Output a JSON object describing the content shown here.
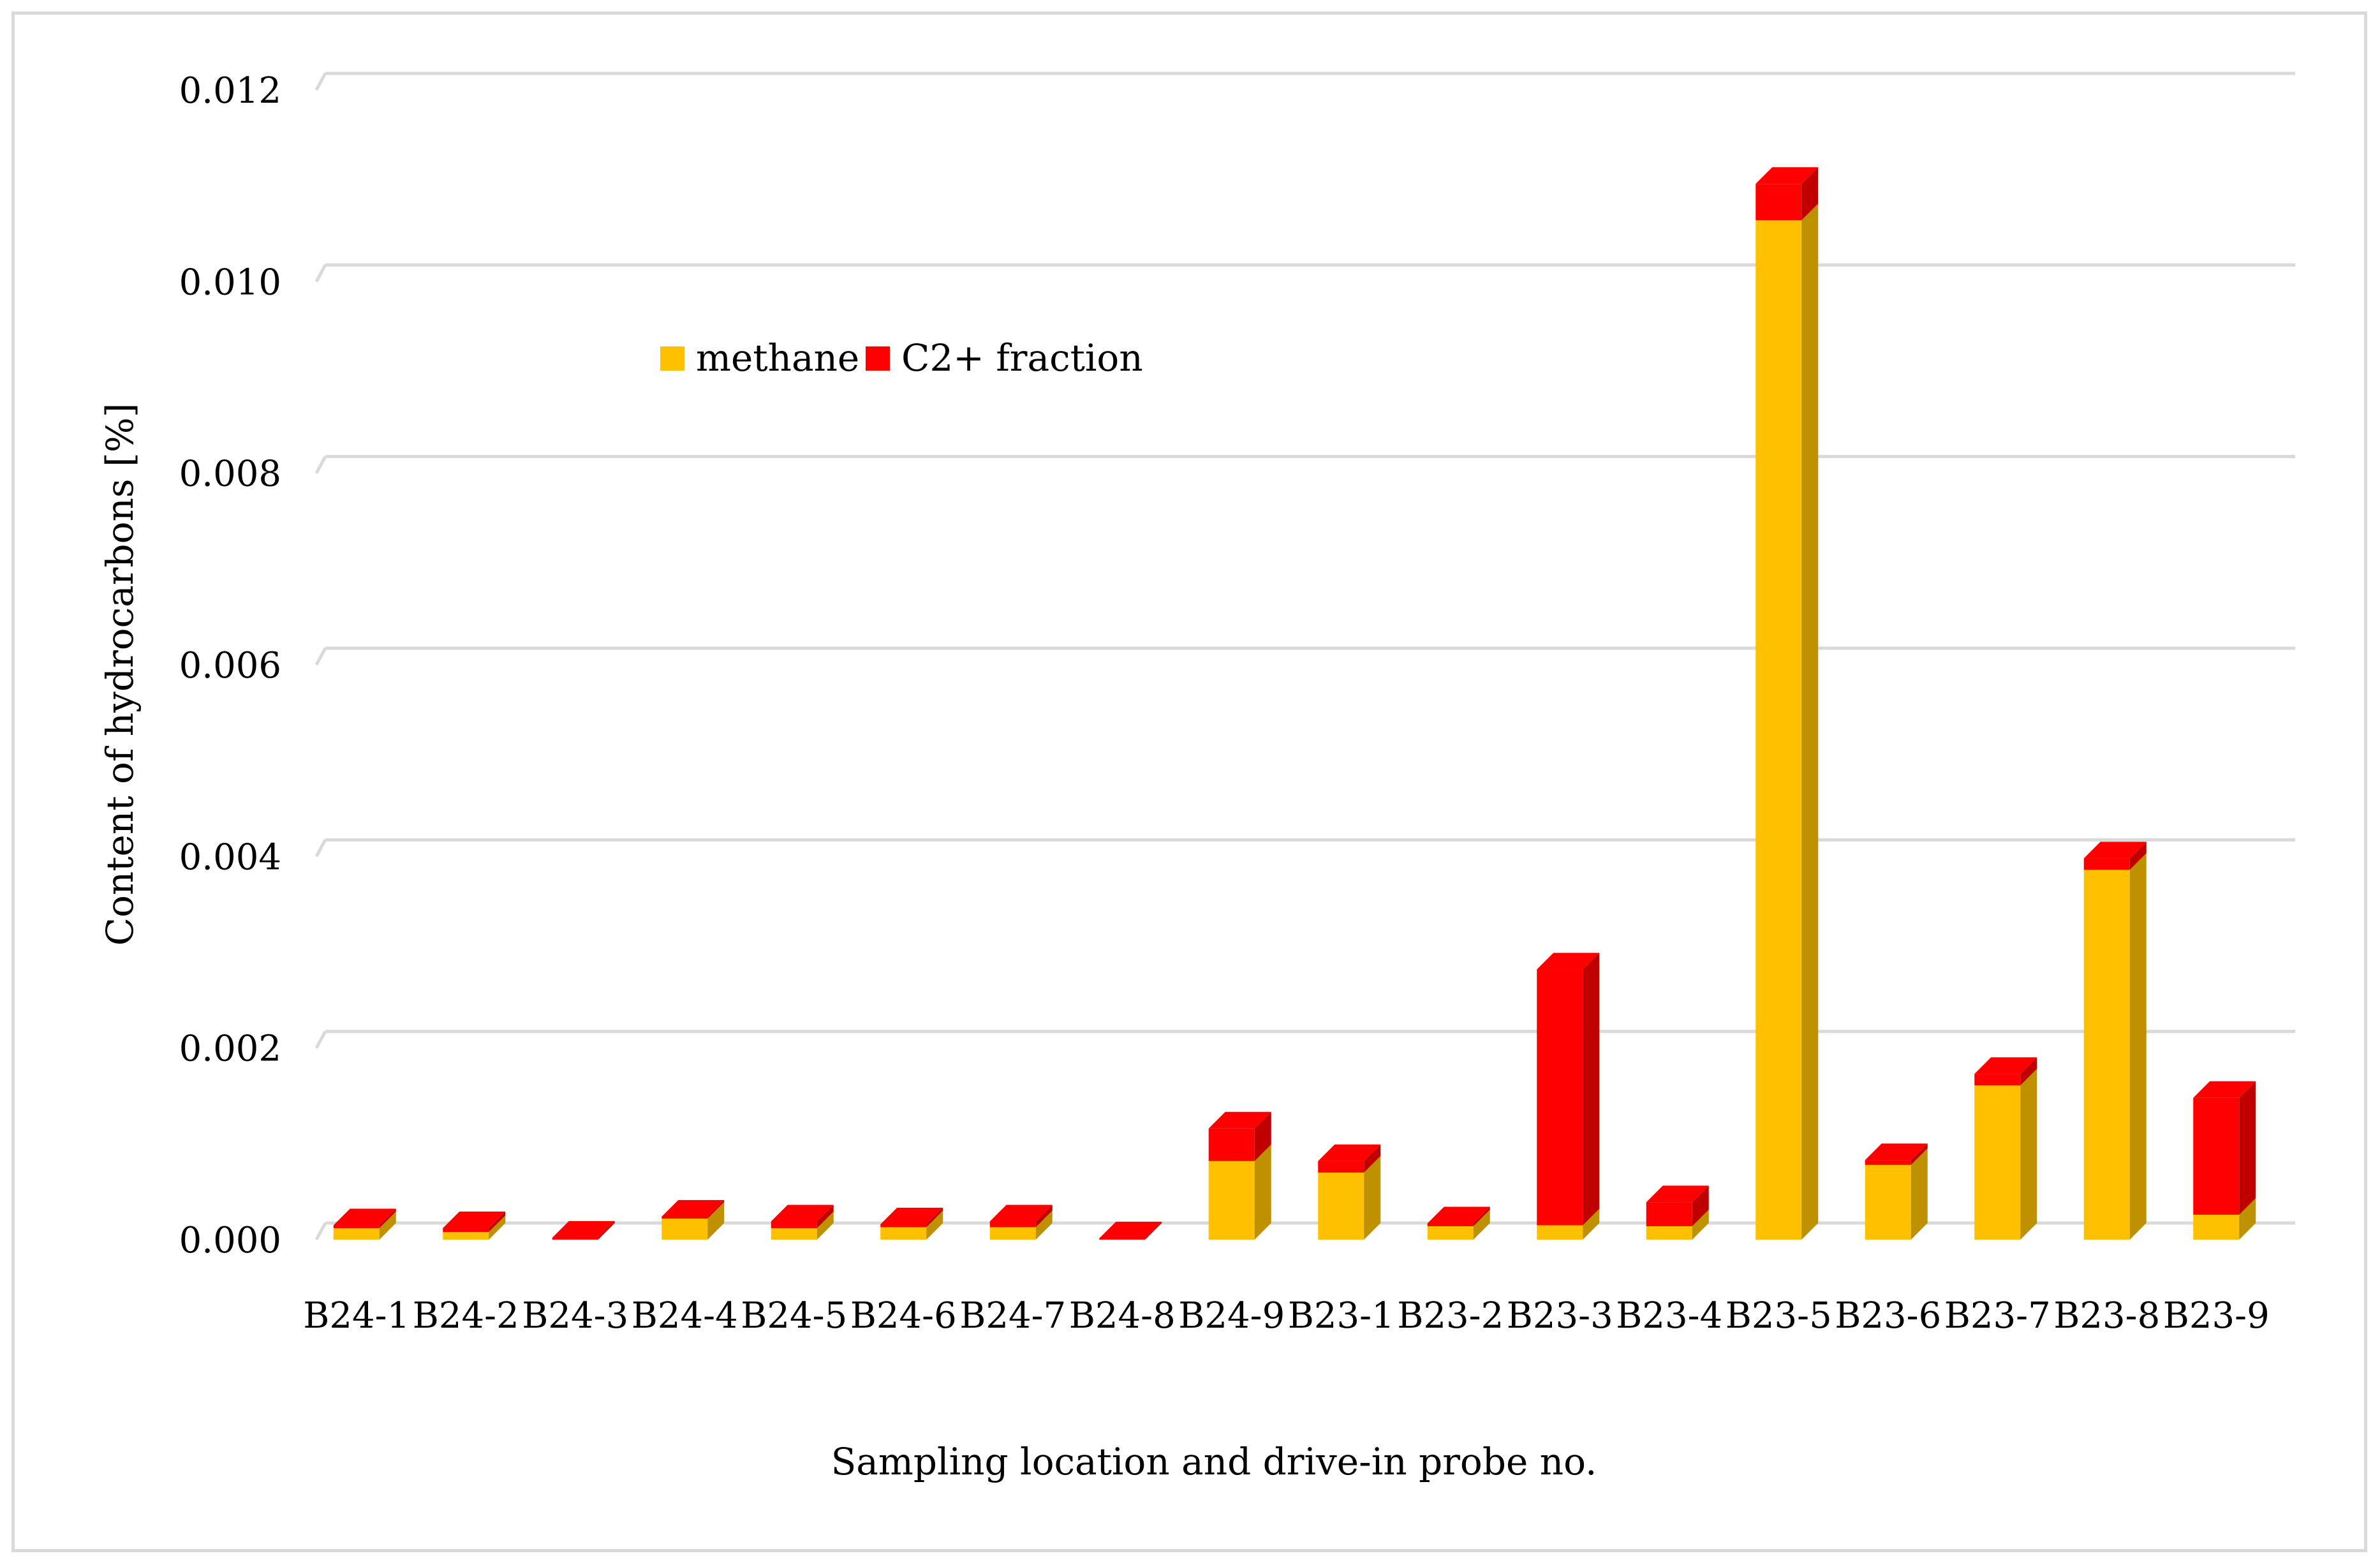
{
  "chart_data": {
    "type": "bar",
    "stacked": true,
    "style": "3d-column",
    "title": "",
    "xlabel": "Sampling location and drive-in probe no.",
    "ylabel": "Content of hydrocarbons [%]",
    "ylim": [
      0,
      0.012
    ],
    "yticks": [
      "0.000",
      "0.002",
      "0.004",
      "0.006",
      "0.008",
      "0.010",
      "0.012"
    ],
    "grid": true,
    "legend_position": "top-left",
    "categories": [
      "B24-1",
      "B24-2",
      "B24-3",
      "B24-4",
      "B24-5",
      "B24-6",
      "B24-7",
      "B24-8",
      "B24-9",
      "B23-1",
      "B23-2",
      "B23-3",
      "B23-4",
      "B23-5",
      "B23-6",
      "B23-7",
      "B23-8",
      "B23-9"
    ],
    "series": [
      {
        "name": "methane",
        "color": "#FFC000",
        "side_color": "#BF9000",
        "values": [
          0.00012,
          8e-05,
          0.0,
          0.00022,
          0.00012,
          0.00013,
          0.00013,
          0.0,
          0.00082,
          0.0007,
          0.00014,
          0.00015,
          0.00014,
          0.01064,
          0.00078,
          0.00161,
          0.00386,
          0.00026
        ]
      },
      {
        "name": "C2+ fraction",
        "color": "#FF0000",
        "side_color": "#C00000",
        "values": [
          3e-05,
          4e-05,
          2e-05,
          2e-05,
          7e-05,
          3e-05,
          6e-05,
          1e-05,
          0.00034,
          0.00012,
          3e-05,
          0.00267,
          0.00025,
          0.00038,
          5e-05,
          0.00012,
          0.00012,
          0.00122
        ]
      }
    ]
  }
}
